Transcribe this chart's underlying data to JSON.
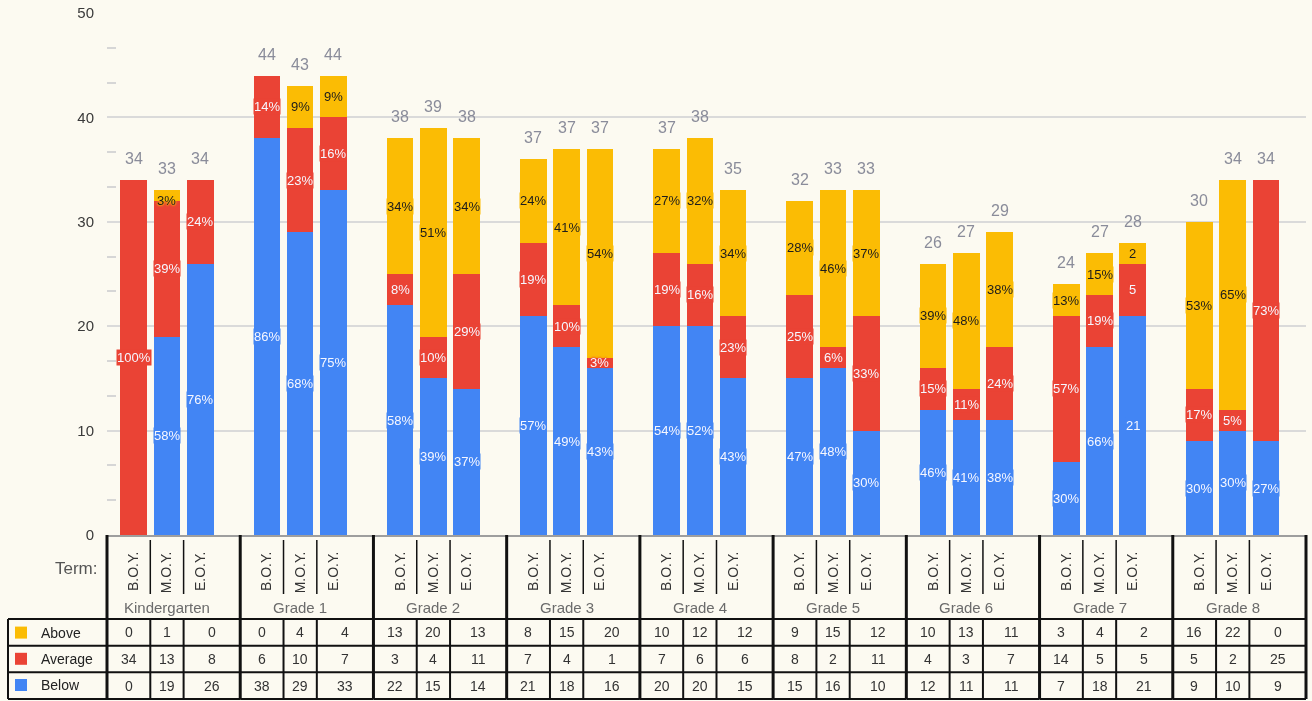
{
  "chart_data": [
    {
      "type": "bar",
      "stacked": true,
      "categories": [
        "B.O.Y.",
        "M.O.Y.",
        "E.O.Y."
      ],
      "xlabel": "Kindergarten",
      "series": [
        {
          "name": "Below",
          "color": "#4285f4",
          "values": [
            0,
            19,
            26
          ],
          "value_labels": [
            "0",
            "19",
            "26"
          ]
        },
        {
          "name": "Average",
          "color": "#ea4335",
          "values": [
            34,
            13,
            8
          ],
          "value_labels": [
            "34",
            "13",
            "8"
          ]
        },
        {
          "name": "Above",
          "color": "#fbbc04",
          "values": [
            0,
            1,
            0
          ],
          "value_labels": [
            "0",
            "1",
            "0"
          ]
        }
      ],
      "totals": [
        "34",
        "33",
        "34"
      ],
      "annotations": [
        "Term:",
        {
          "text": "100%",
          "x": "B.O.Y.",
          "y": 17
        },
        {
          "text": "58%",
          "x": "M.O.Y.",
          "y": 9.5
        },
        {
          "text": "39%",
          "x": "M.O.Y.",
          "y": 25.5
        },
        {
          "text": "3%",
          "x": "M.O.Y.",
          "y": 32
        },
        {
          "text": "76%",
          "x": "E.O.Y.",
          "y": 13
        },
        {
          "text": "24%",
          "x": "E.O.Y.",
          "y": 30
        }
      ],
      "ylim": [
        0,
        50
      ],
      "yticks": [
        0,
        {
          "value": 3.33,
          "label": null
        },
        {
          "value": 6.67,
          "label": null
        },
        10,
        {
          "value": 13.33,
          "label": null
        },
        {
          "value": 16.67,
          "label": null
        },
        20,
        {
          "value": 23.33,
          "label": null
        },
        {
          "value": 26.67,
          "label": null
        },
        30,
        {
          "value": 33.33,
          "label": null
        },
        {
          "value": 36.67,
          "label": null
        },
        40,
        {
          "value": 43.33,
          "label": null
        },
        {
          "value": 46.67,
          "label": null
        },
        50
      ],
      "grid": "y",
      "legend": "bottom left"
    },
    {
      "type": "bar",
      "stacked": true,
      "categories": [
        "B.O.Y.",
        "M.O.Y.",
        "E.O.Y."
      ],
      "xlabel": "Grade 1",
      "series": [
        {
          "color": "#4285f4",
          "values": [
            38,
            29,
            33
          ],
          "value_labels": [
            "38",
            "29",
            "33"
          ]
        },
        {
          "color": "#ea4335",
          "values": [
            6,
            10,
            7
          ],
          "value_labels": [
            "6",
            "10",
            "7"
          ]
        },
        {
          "color": "#fbbc04",
          "values": [
            0,
            4,
            4
          ],
          "value_labels": [
            "0",
            "4",
            "4"
          ]
        }
      ],
      "totals": [
        "44",
        "43",
        "44"
      ],
      "annotations": [
        {
          "text": "86%",
          "x": "B.O.Y.",
          "y": 19
        },
        {
          "text": "14%",
          "x": "B.O.Y.",
          "y": 41
        },
        {
          "text": "68%",
          "x": "M.O.Y.",
          "y": 14.5
        },
        {
          "text": "23%",
          "x": "M.O.Y.",
          "y": 34
        },
        {
          "text": "9%",
          "x": "M.O.Y.",
          "y": 41
        },
        {
          "text": "75%",
          "x": "E.O.Y.",
          "y": 16.5
        },
        {
          "text": "16%",
          "x": "E.O.Y.",
          "y": 36.5
        },
        {
          "text": "9%",
          "x": "E.O.Y.",
          "y": 42
        }
      ],
      "ylim": [
        0,
        50
      ],
      "yticks": [
        0,
        10,
        20,
        30,
        40,
        50
      ],
      "grid": "y",
      "tick_labels": "x"
    },
    {
      "type": "bar",
      "stacked": true,
      "categories": [
        "B.O.Y.",
        "M.O.Y.",
        "E.O.Y."
      ],
      "xlabel": "Grade 2",
      "series": [
        {
          "color": "#4285f4",
          "values": [
            22,
            15,
            14
          ],
          "value_labels": [
            "22",
            "15",
            "14"
          ]
        },
        {
          "color": "#ea4335",
          "values": [
            3,
            4,
            11
          ],
          "value_labels": [
            "3",
            "4",
            "11"
          ]
        },
        {
          "color": "#fbbc04",
          "values": [
            13,
            20,
            13
          ],
          "value_labels": [
            "13",
            "20",
            "13"
          ]
        }
      ],
      "totals": [
        "38",
        "39",
        "38"
      ],
      "annotations": [
        {
          "text": "58%",
          "x": "B.O.Y.",
          "y": 11
        },
        {
          "text": "8%",
          "x": "B.O.Y.",
          "y": 23.5
        },
        {
          "text": "34%",
          "x": "B.O.Y.",
          "y": 31.5
        },
        {
          "text": "39%",
          "x": "M.O.Y.",
          "y": 7.5
        },
        {
          "text": "10%",
          "x": "M.O.Y.",
          "y": 17
        },
        {
          "text": "51%",
          "x": "M.O.Y.",
          "y": 29
        },
        {
          "text": "37%",
          "x": "E.O.Y.",
          "y": 7
        },
        {
          "text": "29%",
          "x": "E.O.Y.",
          "y": 19.5
        },
        {
          "text": "34%",
          "x": "E.O.Y.",
          "y": 31.5
        }
      ],
      "ylim": [
        0,
        50
      ],
      "yticks": [
        0,
        10,
        20,
        30,
        40,
        50
      ],
      "grid": "y",
      "tick_labels": "x"
    },
    {
      "type": "bar",
      "stacked": true,
      "categories": [
        "B.O.Y.",
        "M.O.Y.",
        "E.O.Y."
      ],
      "xlabel": "Grade 3",
      "series": [
        {
          "color": "#4285f4",
          "values": [
            21,
            18,
            16
          ],
          "value_labels": [
            "21",
            "18",
            "16"
          ]
        },
        {
          "color": "#ea4335",
          "values": [
            7,
            4,
            1
          ],
          "value_labels": [
            "7",
            "4",
            "1"
          ]
        },
        {
          "color": "#fbbc04",
          "values": [
            8,
            15,
            20
          ],
          "value_labels": [
            "8",
            "15",
            "20"
          ]
        }
      ],
      "totals": [
        null,
        "37",
        "37"
      ],
      "annotations": [
        {
          "text": "37",
          "x": "B.O.Y.",
          "y": 36
        },
        {
          "text": "57%",
          "x": "B.O.Y.",
          "y": 10.5
        },
        {
          "text": "19%",
          "x": "B.O.Y.",
          "y": 24.5
        },
        {
          "text": "24%",
          "x": "B.O.Y.",
          "y": 32
        },
        {
          "text": "49%",
          "x": "M.O.Y.",
          "y": 9
        },
        {
          "text": "10%",
          "x": "M.O.Y.",
          "y": 20
        },
        {
          "text": "41%",
          "x": "M.O.Y.",
          "y": 29.5
        },
        {
          "text": "43%",
          "x": "E.O.Y.",
          "y": 8
        },
        {
          "text": "3%",
          "x": "E.O.Y.",
          "y": 16.5
        },
        {
          "text": "54%",
          "x": "E.O.Y.",
          "y": 27
        }
      ],
      "ylim": [
        0,
        50
      ],
      "yticks": [
        0,
        10,
        20,
        30,
        40,
        50
      ],
      "grid": "y",
      "tick_labels": "x"
    },
    {
      "type": "bar",
      "stacked": true,
      "categories": [
        "B.O.Y.",
        "M.O.Y.",
        "E.O.Y."
      ],
      "xlabel": "Grade 4",
      "series": [
        {
          "color": "#4285f4",
          "values": [
            20,
            20,
            15
          ],
          "value_labels": [
            "20",
            "20",
            "15"
          ]
        },
        {
          "color": "#ea4335",
          "values": [
            7,
            6,
            6
          ],
          "value_labels": [
            "7",
            "6",
            "6"
          ]
        },
        {
          "color": "#fbbc04",
          "values": [
            10,
            12,
            12
          ],
          "value_labels": [
            "10",
            "12",
            "12"
          ]
        }
      ],
      "totals": [
        "37",
        "38",
        null
      ],
      "annotations": [
        {
          "text": "35",
          "x": "E.O.Y.",
          "y": 33
        },
        {
          "text": "54%",
          "x": "B.O.Y.",
          "y": 10
        },
        {
          "text": "19%",
          "x": "B.O.Y.",
          "y": 23.5
        },
        {
          "text": "27%",
          "x": "B.O.Y.",
          "y": 32
        },
        {
          "text": "52%",
          "x": "M.O.Y.",
          "y": 10
        },
        {
          "text": "16%",
          "x": "M.O.Y.",
          "y": 23
        },
        {
          "text": "32%",
          "x": "M.O.Y.",
          "y": 32
        },
        {
          "text": "43%",
          "x": "E.O.Y.",
          "y": 7.5
        },
        {
          "text": "23%",
          "x": "E.O.Y.",
          "y": 18
        },
        {
          "text": "34%",
          "x": "E.O.Y.",
          "y": 27
        }
      ],
      "ylim": [
        0,
        50
      ],
      "yticks": [
        0,
        10,
        20,
        30,
        40,
        50
      ],
      "grid": "y",
      "tick_labels": "x"
    },
    {
      "type": "bar",
      "stacked": true,
      "categories": [
        "B.O.Y.",
        "M.O.Y.",
        "E.O.Y."
      ],
      "xlabel": "Grade 5",
      "series": [
        {
          "color": "#4285f4",
          "values": [
            15,
            16,
            10
          ],
          "value_labels": [
            "15",
            "16",
            "10"
          ]
        },
        {
          "color": "#ea4335",
          "values": [
            8,
            2,
            11
          ],
          "value_labels": [
            "8",
            "2",
            "11"
          ]
        },
        {
          "color": "#fbbc04",
          "values": [
            9,
            15,
            12
          ],
          "value_labels": [
            "9",
            "15",
            "12"
          ]
        }
      ],
      "totals": [
        "32",
        "33",
        "33"
      ],
      "annotations": [
        {
          "text": "47%",
          "x": "B.O.Y.",
          "y": 7.5
        },
        {
          "text": "25%",
          "x": "B.O.Y.",
          "y": 19
        },
        {
          "text": "28%",
          "x": "B.O.Y.",
          "y": 27.5
        },
        {
          "text": "48%",
          "x": "M.O.Y.",
          "y": 8
        },
        {
          "text": "6%",
          "x": "M.O.Y.",
          "y": 17
        },
        {
          "text": "46%",
          "x": "M.O.Y.",
          "y": 25.5
        },
        {
          "text": "30%",
          "x": "E.O.Y.",
          "y": 5
        },
        {
          "text": "33%",
          "x": "E.O.Y.",
          "y": 15.5
        },
        {
          "text": "37%",
          "x": "E.O.Y.",
          "y": 27
        }
      ],
      "ylim": [
        0,
        50
      ],
      "yticks": [
        0,
        10,
        20,
        30,
        40,
        50
      ],
      "grid": "y",
      "tick_labels": "x"
    },
    {
      "type": "bar",
      "stacked": true,
      "categories": [
        "B.O.Y.",
        "M.O.Y.",
        "E.O.Y."
      ],
      "xlabel": "Grade 6",
      "series": [
        {
          "color": "#4285f4",
          "values": [
            12,
            11,
            11
          ],
          "value_labels": [
            "12",
            "11",
            "11"
          ]
        },
        {
          "color": "#ea4335",
          "values": [
            4,
            3,
            7
          ],
          "value_labels": [
            "4",
            "3",
            "7"
          ]
        },
        {
          "color": "#fbbc04",
          "values": [
            10,
            13,
            11
          ],
          "value_labels": [
            "10",
            "13",
            "11"
          ]
        }
      ],
      "totals": [
        "26",
        "27",
        "29"
      ],
      "annotations": [
        {
          "text": "46%",
          "x": "B.O.Y.",
          "y": 6
        },
        {
          "text": "15%",
          "x": "B.O.Y.",
          "y": 14
        },
        {
          "text": "39%",
          "x": "B.O.Y.",
          "y": 21
        },
        {
          "text": "41%",
          "x": "M.O.Y.",
          "y": 5.5
        },
        {
          "text": "11%",
          "x": "M.O.Y.",
          "y": 12.5
        },
        {
          "text": "48%",
          "x": "M.O.Y.",
          "y": 20.5
        },
        {
          "text": "38%",
          "x": "E.O.Y.",
          "y": 5.5
        },
        {
          "text": "24%",
          "x": "E.O.Y.",
          "y": 14.5
        },
        {
          "text": "38%",
          "x": "E.O.Y.",
          "y": 23.5
        }
      ],
      "ylim": [
        0,
        50
      ],
      "yticks": [
        0,
        10,
        20,
        30,
        40,
        50
      ],
      "grid": "y",
      "tick_labels": "x"
    },
    {
      "type": "bar",
      "stacked": true,
      "categories": [
        "B.O.Y.",
        "M.O.Y.",
        "E.O.Y."
      ],
      "xlabel": "Grade 7",
      "series": [
        {
          "color": "#4285f4",
          "values": [
            7,
            18,
            21
          ],
          "value_labels": [
            "7",
            "18",
            "21"
          ]
        },
        {
          "color": "#ea4335",
          "values": [
            14,
            5,
            5
          ],
          "value_labels": [
            "14",
            "5",
            "5"
          ]
        },
        {
          "color": "#fbbc04",
          "values": [
            3,
            4,
            2
          ],
          "value_labels": [
            "3",
            "4",
            "2"
          ]
        }
      ],
      "totals": [
        "24",
        "27",
        "28"
      ],
      "annotations": [
        {
          "text": "30%",
          "x": "B.O.Y.",
          "y": 3.5
        },
        {
          "text": "57%",
          "x": "B.O.Y.",
          "y": 14
        },
        {
          "text": "13%",
          "x": "B.O.Y.",
          "y": 22.5
        },
        {
          "text": "66%",
          "x": "M.O.Y.",
          "y": 9
        },
        {
          "text": "19%",
          "x": "M.O.Y.",
          "y": 20.5
        },
        {
          "text": "15%",
          "x": "M.O.Y.",
          "y": 25
        },
        {
          "text": "21",
          "x": "E.O.Y.",
          "y": 10.5
        },
        {
          "text": "5",
          "x": "E.O.Y.",
          "y": 23.5
        },
        {
          "text": "2",
          "x": "E.O.Y.",
          "y": 27
        }
      ],
      "ylim": [
        0,
        50
      ],
      "yticks": [
        0,
        10,
        20,
        30,
        40,
        50
      ],
      "grid": "y",
      "tick_labels": "x"
    },
    {
      "type": "bar",
      "stacked": true,
      "categories": [
        "B.O.Y.",
        "M.O.Y.",
        "E.O.Y."
      ],
      "xlabel": "Grade 8",
      "series": [
        {
          "color": "#4285f4",
          "values": [
            9,
            10,
            9
          ],
          "value_labels": [
            "9",
            "10",
            "9"
          ]
        },
        {
          "color": "#ea4335",
          "values": [
            5,
            2,
            25
          ],
          "value_labels": [
            "5",
            "2",
            "25"
          ]
        },
        {
          "color": "#fbbc04",
          "values": [
            16,
            22,
            0
          ],
          "value_labels": [
            "16",
            "22",
            "0"
          ]
        }
      ],
      "totals": [
        "30",
        "34",
        "34"
      ],
      "annotations": [
        {
          "text": "30%",
          "x": "B.O.Y.",
          "y": 4.5
        },
        {
          "text": "17%",
          "x": "B.O.Y.",
          "y": 11.5
        },
        {
          "text": "53%",
          "x": "B.O.Y.",
          "y": 22
        },
        {
          "text": "30%",
          "x": "M.O.Y.",
          "y": 5
        },
        {
          "text": "5%",
          "x": "M.O.Y.",
          "y": 11
        },
        {
          "text": "65%",
          "x": "M.O.Y.",
          "y": 23
        },
        {
          "text": "27%",
          "x": "E.O.Y.",
          "y": 4.5
        },
        {
          "text": "73%",
          "x": "E.O.Y.",
          "y": 21.5
        }
      ],
      "ylim": [
        0,
        50
      ],
      "yticks": [
        0,
        10,
        20,
        30,
        40,
        50
      ],
      "grid": "y",
      "tick_labels": "x"
    }
  ]
}
